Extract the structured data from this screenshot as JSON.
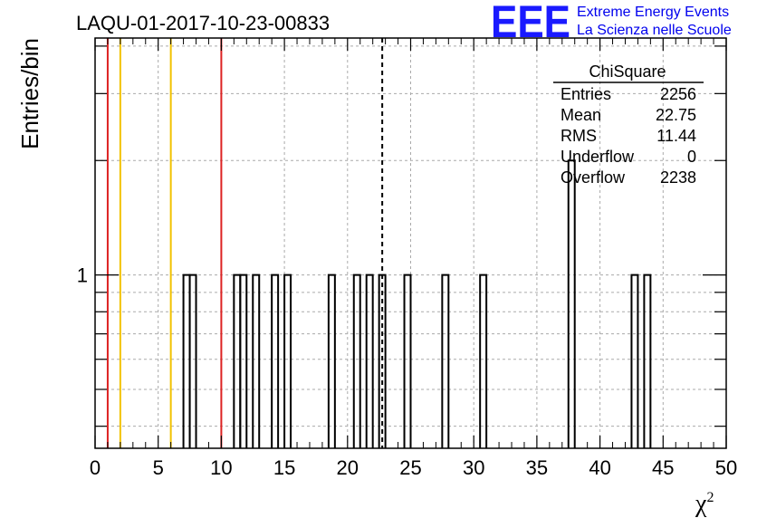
{
  "chart_data": {
    "type": "bar",
    "title": "LAQU-01-2017-10-23-00833",
    "xlabel": "χ",
    "xlabel_sup": "2",
    "ylabel": "Entries/bin",
    "xlim": [
      0,
      50
    ],
    "ylim": [
      0.35,
      4.2
    ],
    "y_scale": "log",
    "bin_width": 0.5,
    "x_ticks": [
      "0",
      "5",
      "10",
      "15",
      "20",
      "25",
      "30",
      "35",
      "40",
      "45",
      "50"
    ],
    "y_ticks": [
      "1"
    ],
    "grid": true,
    "bins": [
      {
        "x": 7.0,
        "value": 1
      },
      {
        "x": 7.5,
        "value": 1
      },
      {
        "x": 11.0,
        "value": 1
      },
      {
        "x": 11.5,
        "value": 1
      },
      {
        "x": 12.5,
        "value": 1
      },
      {
        "x": 14.0,
        "value": 1
      },
      {
        "x": 15.0,
        "value": 1
      },
      {
        "x": 18.5,
        "value": 1
      },
      {
        "x": 20.5,
        "value": 1
      },
      {
        "x": 21.5,
        "value": 1
      },
      {
        "x": 22.5,
        "value": 1
      },
      {
        "x": 24.5,
        "value": 1
      },
      {
        "x": 27.5,
        "value": 1
      },
      {
        "x": 30.5,
        "value": 1
      },
      {
        "x": 37.5,
        "value": 2
      },
      {
        "x": 42.5,
        "value": 1
      },
      {
        "x": 43.5,
        "value": 1
      }
    ],
    "vertical_lines": [
      {
        "x": 1,
        "color": "#dd2222",
        "style": "solid"
      },
      {
        "x": 2,
        "color": "#f2c200",
        "style": "solid"
      },
      {
        "x": 6,
        "color": "#f2c200",
        "style": "solid"
      },
      {
        "x": 10,
        "color": "#dd2222",
        "style": "solid"
      },
      {
        "x": 22.75,
        "color": "#000000",
        "style": "dashed"
      }
    ],
    "stats_box": {
      "title": "ChiSquare",
      "rows": [
        {
          "label": "Entries",
          "value": "2256"
        },
        {
          "label": "Mean",
          "value": "22.75"
        },
        {
          "label": "RMS",
          "value": "11.44"
        },
        {
          "label": "Underflow",
          "value": "0"
        },
        {
          "label": "Overflow",
          "value": "2238"
        }
      ]
    }
  },
  "logo": {
    "letters": "EEE",
    "line1": "Extreme Energy Events",
    "line2": "La Scienza nelle Scuole",
    "color": "#1a1aff"
  }
}
